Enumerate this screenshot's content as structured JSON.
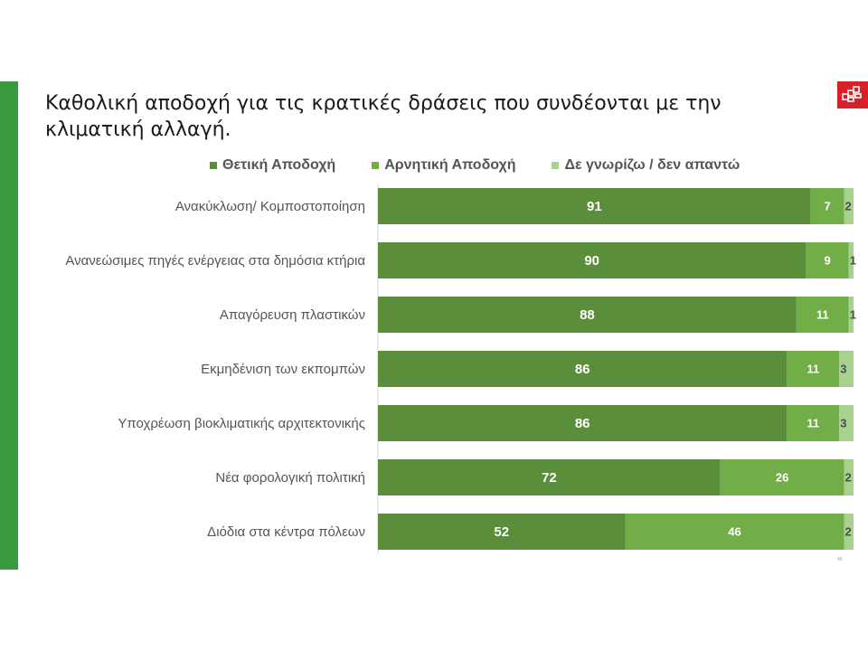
{
  "title_line1": "Καθολική αποδοχή για τις κρατικές δράσεις που συνδέονται με την",
  "title_line2": "κλιματική αλλαγή.",
  "page_number": "45",
  "colors": {
    "accent": "#3a9a3e",
    "logo": "#d6202a",
    "positive": "#5b8e3a",
    "negative": "#71ae48",
    "unknown": "#a9d18e"
  },
  "icons": [
    "logo-icon"
  ],
  "chart_data": {
    "type": "bar",
    "orientation": "horizontal",
    "stacked": true,
    "title": "",
    "xlabel": "",
    "ylabel": "",
    "xlim": [
      0,
      100
    ],
    "grid": false,
    "legend_position": "top",
    "categories": [
      "Ανακύκλωση/ Κομποστοποίηση",
      "Ανανεώσιμες πηγές ενέργειας στα δημόσια κτήρια",
      "Απαγόρευση πλαστικών",
      "Εκμηδένιση των εκπομπών",
      "Υποχρέωση βιοκλιματικής αρχιτεκτονικής",
      "Νέα φορολογική πολιτική",
      "Διόδια στα κέντρα  πόλεων"
    ],
    "series": [
      {
        "name": "Θετική Αποδοχή",
        "color": "#5b8e3a",
        "values": [
          91,
          90,
          88,
          86,
          86,
          72,
          52
        ]
      },
      {
        "name": "Αρνητική Αποδοχή",
        "color": "#71ae48",
        "values": [
          7,
          9,
          11,
          11,
          11,
          26,
          46
        ]
      },
      {
        "name": "Δε γνωρίζω / δεν απαντώ",
        "color": "#a9d18e",
        "values": [
          2,
          1,
          1,
          3,
          3,
          2,
          2
        ]
      }
    ]
  }
}
